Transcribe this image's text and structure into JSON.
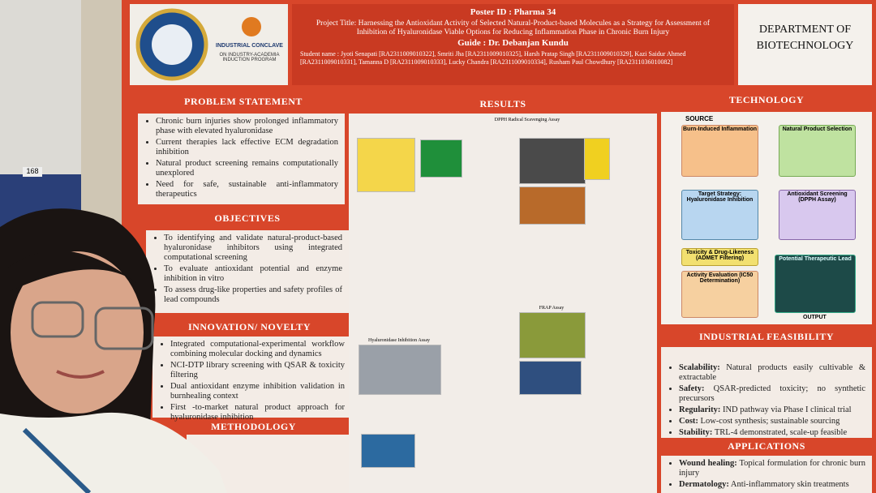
{
  "board_number": "168",
  "header": {
    "logo_line1": "INDUSTRIAL CONCLAVE",
    "logo_line2": "ON INDUSTRY-ACADEMIA INDUCTION PROGRAM",
    "poster_id": "Poster ID : Pharma 34",
    "project_title": "Project Title: Harnessing the Antioxidant Activity of Selected Natural-Product-based Molecules as a Strategy for Assessment of Inhibition of Hyaluronidase  Viable Options for Reducing Inflammation Phase in Chronic Burn Injury",
    "guide": "Guide : Dr. Debanjan Kundu",
    "students": "Student name : Jyoti Senapati [RA2311009010322], Smriti Jha [RA2311009010325], Harsh Pratap Singh [RA2311009010329], Kazi Saidur Ahmed [RA2311009010331], Tamanna D [RA2311009010333], Lucky Chandra [RA2311009010334], Rusham Paul Chowdhury [RA2311036010082]",
    "department": "DEPARTMENT OF BIOTECHNOLOGY"
  },
  "problem_statement": {
    "title": "PROBLEM STATEMENT",
    "items": [
      "Chronic burn injuries show prolonged inflammatory phase with elevated hyaluronidase",
      "Current therapies lack effective ECM degradation inhibition",
      "Natural product screening remains computationally unexplored",
      "Need for safe, sustainable anti-inflammatory therapeutics"
    ]
  },
  "objectives": {
    "title": "OBJECTIVES",
    "items": [
      "To identifying and validate natural-product-based hyaluronidase inhibitors using integrated computational screening",
      "To evaluate antioxidant potential and enzyme inhibition in vitro",
      "To assess drug-like properties and safety profiles of lead compounds"
    ]
  },
  "innovation": {
    "title": "INNOVATION/ NOVELTY",
    "items": [
      "Integrated computational-experimental workflow combining molecular docking and dynamics",
      "NCI-DTP library screening with QSAR & toxicity filtering",
      "Dual antioxidant enzyme inhibition validation in burnhealing context",
      "First -to-market natural product approach for hyaluronidase inhibition"
    ]
  },
  "methodology": {
    "title": "METHODOLOGY"
  },
  "results": {
    "title": "RESULTS",
    "labels": [
      "DPPH Radical Scavenging Assay",
      "FRAP Assay",
      "Hyaluronidase Inhibition Assay"
    ]
  },
  "technology": {
    "title": "TECHNOLOGY",
    "source": "SOURCE",
    "output": "OUTPUT",
    "steps": [
      "Burn-Induced Inflammation",
      "Natural Product Selection",
      "Target Strategy: Hyaluronidase Inhibition",
      "Antioxidant Screening (DPPH Assay)",
      "Toxicity & Drug-Likeness (ADMET Filtering)",
      "Activity Evaluation (IC50 Determination)",
      "Potential Therapeutic Lead"
    ]
  },
  "feasibility": {
    "title": "INDUSTRIAL FEASIBILITY",
    "items": [
      {
        "term": "Scalability:",
        "text": "Natural products easily cultivable & extractable"
      },
      {
        "term": "Safety:",
        "text": "QSAR-predicted toxicity; no synthetic precursors"
      },
      {
        "term": "Regularity:",
        "text": "IND pathway via Phase I clinical trial"
      },
      {
        "term": "Cost:",
        "text": "Low-cost synthesis; sustainable sourcing"
      },
      {
        "term": "Stability:",
        "text": "TRL-4 demonstrated, scale-up feasible"
      }
    ]
  },
  "applications": {
    "title": "APPLICATIONS",
    "items": [
      {
        "term": "Wound healing:",
        "text": "Topical formulation for chronic burn injury"
      },
      {
        "term": "Dermatology:",
        "text": "Anti-inflammatory skin treatments"
      }
    ]
  }
}
